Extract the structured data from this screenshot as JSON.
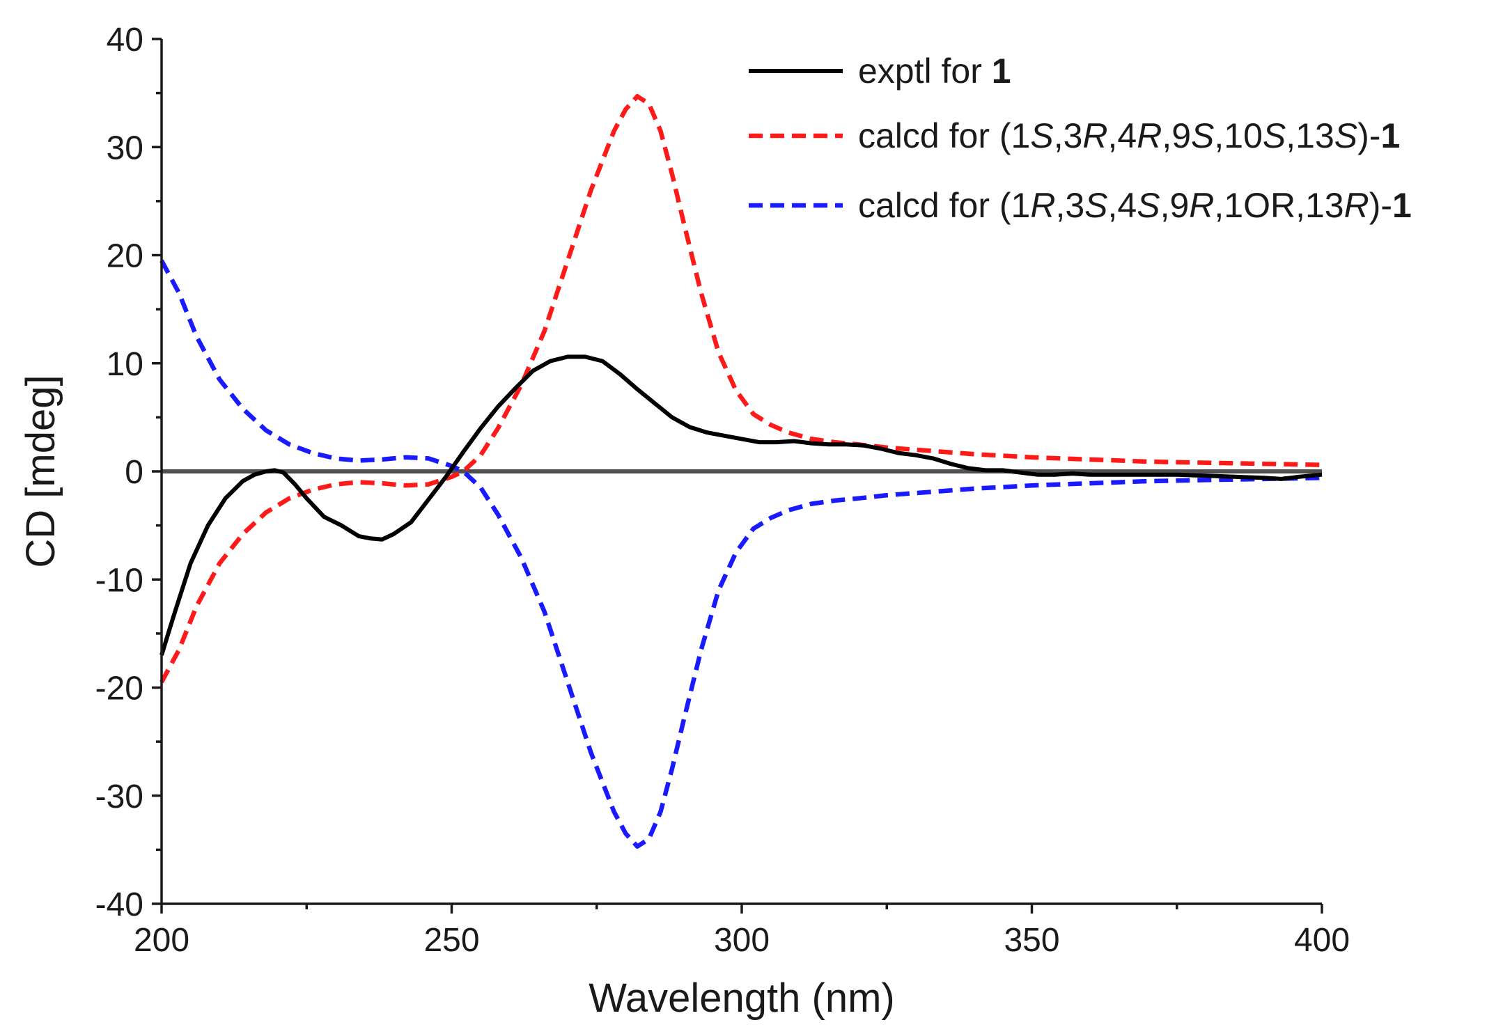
{
  "chart_data": {
    "type": "line",
    "xlabel": "Wavelength (nm)",
    "ylabel": "CD [mdeg]",
    "xlim": [
      200,
      400
    ],
    "ylim": [
      -40,
      40
    ],
    "x_ticks": [
      200,
      250,
      300,
      350,
      400
    ],
    "x_tick_labels": [
      "200",
      "250",
      "300",
      "350",
      "400"
    ],
    "y_ticks": [
      -40,
      -30,
      -20,
      -10,
      0,
      10,
      20,
      30,
      40
    ],
    "y_tick_labels": [
      "-40",
      "-30",
      "-20",
      "-10",
      "0",
      "10",
      "20",
      "30",
      "40"
    ],
    "grid": false,
    "legend_position": "top-right",
    "zero_line_color": "#505050",
    "series": [
      {
        "name": "exptl for 1",
        "legend_parts": [
          {
            "t": "exptl for "
          },
          {
            "t": "1",
            "b": true
          }
        ],
        "color": "#000000",
        "dash": "solid",
        "x": [
          200,
          202,
          205,
          208,
          211,
          214,
          216,
          218,
          219.5,
          221,
          223,
          225,
          228,
          231,
          234,
          236,
          238,
          240,
          243,
          246,
          249,
          252,
          255,
          258,
          261,
          264,
          267,
          270,
          273,
          276,
          279,
          282,
          285,
          288,
          291,
          294,
          297,
          300,
          303,
          306,
          309,
          312,
          315,
          318,
          321,
          324,
          327,
          330,
          333,
          336,
          339,
          342,
          345,
          348,
          351,
          354,
          357,
          360,
          365,
          370,
          375,
          380,
          385,
          390,
          393,
          396,
          400
        ],
        "y": [
          -17,
          -13.5,
          -8.5,
          -5,
          -2.5,
          -0.9,
          -0.3,
          0,
          0.1,
          -0.1,
          -1.2,
          -2.5,
          -4.2,
          -5.0,
          -6.0,
          -6.2,
          -6.3,
          -5.8,
          -4.7,
          -2.6,
          -0.5,
          1.8,
          4.0,
          6.0,
          7.7,
          9.3,
          10.2,
          10.6,
          10.6,
          10.2,
          9.0,
          7.6,
          6.3,
          5.0,
          4.1,
          3.6,
          3.3,
          3.0,
          2.7,
          2.7,
          2.8,
          2.6,
          2.5,
          2.5,
          2.4,
          2.1,
          1.7,
          1.5,
          1.2,
          0.7,
          0.3,
          0.1,
          0.1,
          -0.1,
          -0.3,
          -0.3,
          -0.2,
          -0.3,
          -0.3,
          -0.3,
          -0.3,
          -0.4,
          -0.5,
          -0.6,
          -0.7,
          -0.5,
          -0.3
        ]
      },
      {
        "name": "calcd for (1S,3R,4R,9S,10S,13S)-1",
        "legend_parts": [
          {
            "t": "calcd for (1"
          },
          {
            "t": "S",
            "i": true
          },
          {
            "t": ",3"
          },
          {
            "t": "R",
            "i": true
          },
          {
            "t": ",4"
          },
          {
            "t": "R",
            "i": true
          },
          {
            "t": ",9"
          },
          {
            "t": "S",
            "i": true
          },
          {
            "t": ",10"
          },
          {
            "t": "S",
            "i": true
          },
          {
            "t": ",13"
          },
          {
            "t": "S",
            "i": true
          },
          {
            "t": ")-"
          },
          {
            "t": "1",
            "b": true
          }
        ],
        "color": "#ff1a1a",
        "dash": "dashed",
        "x": [
          200,
          203,
          206,
          210,
          214,
          218,
          222,
          226,
          230,
          234,
          238,
          242,
          246,
          250,
          252,
          255,
          258,
          262,
          266,
          270,
          274,
          278,
          280,
          282,
          284,
          286,
          288,
          290,
          293,
          296,
          299,
          302,
          305,
          308,
          312,
          316,
          320,
          325,
          330,
          340,
          350,
          360,
          370,
          380,
          390,
          400
        ],
        "y": [
          -19.5,
          -16.5,
          -12.5,
          -8.5,
          -5.8,
          -3.8,
          -2.5,
          -1.7,
          -1.2,
          -1.0,
          -1.1,
          -1.3,
          -1.2,
          -0.5,
          0.0,
          1.5,
          4.0,
          8.0,
          13.0,
          19.5,
          26.0,
          31.5,
          33.5,
          34.7,
          34.0,
          31.5,
          27.5,
          23.0,
          16.5,
          11.0,
          7.5,
          5.3,
          4.3,
          3.6,
          3.0,
          2.7,
          2.5,
          2.2,
          2.0,
          1.6,
          1.3,
          1.1,
          0.9,
          0.8,
          0.7,
          0.6
        ]
      },
      {
        "name": "calcd for (1R,3S,4S,9R,1OR,13R)-1",
        "legend_parts": [
          {
            "t": "calcd for (1"
          },
          {
            "t": "R",
            "i": true
          },
          {
            "t": ",3"
          },
          {
            "t": "S",
            "i": true
          },
          {
            "t": ",4"
          },
          {
            "t": "S",
            "i": true
          },
          {
            "t": ",9"
          },
          {
            "t": "R",
            "i": true
          },
          {
            "t": ",1OR,13"
          },
          {
            "t": "R",
            "i": true
          },
          {
            "t": ")-"
          },
          {
            "t": "1",
            "b": true
          }
        ],
        "color": "#1a1aff",
        "dash": "dashed",
        "x": [
          200,
          203,
          206,
          210,
          214,
          218,
          222,
          226,
          230,
          234,
          238,
          242,
          246,
          250,
          252,
          255,
          258,
          262,
          266,
          270,
          274,
          278,
          280,
          282,
          284,
          286,
          288,
          290,
          293,
          296,
          299,
          302,
          305,
          308,
          312,
          316,
          320,
          325,
          330,
          340,
          350,
          360,
          370,
          380,
          390,
          400
        ],
        "y": [
          19.5,
          16.5,
          12.5,
          8.5,
          5.8,
          3.8,
          2.5,
          1.7,
          1.2,
          1.0,
          1.1,
          1.3,
          1.2,
          0.5,
          0.0,
          -1.5,
          -4.0,
          -8.0,
          -13.0,
          -19.5,
          -26.0,
          -31.5,
          -33.5,
          -34.7,
          -34.0,
          -31.5,
          -27.5,
          -23.0,
          -16.5,
          -11.0,
          -7.5,
          -5.3,
          -4.3,
          -3.6,
          -3.0,
          -2.7,
          -2.5,
          -2.2,
          -2.0,
          -1.6,
          -1.3,
          -1.1,
          -0.9,
          -0.8,
          -0.7,
          -0.6
        ]
      }
    ]
  }
}
